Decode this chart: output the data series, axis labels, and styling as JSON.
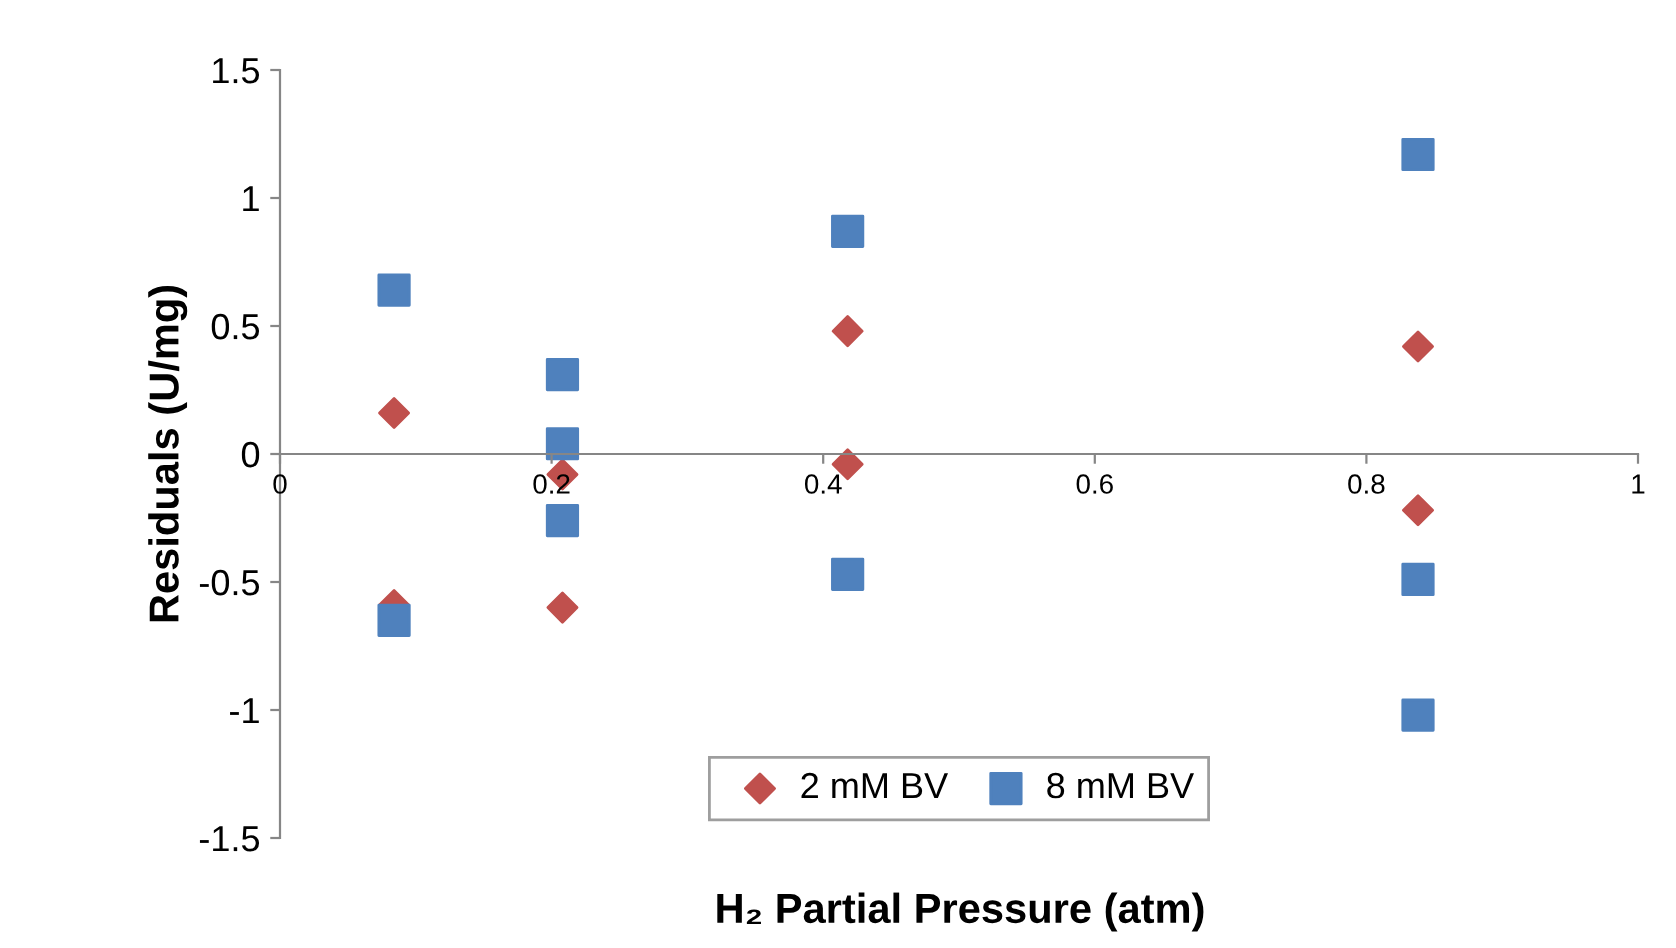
{
  "chart_data": {
    "type": "scatter",
    "xlabel": "H₂ Partial Pressure (atm)",
    "ylabel": "Residuals (U/mg)",
    "xlim": [
      0,
      1
    ],
    "xticks": [
      0,
      0.2,
      0.4,
      0.6,
      0.8,
      1
    ],
    "ylim": [
      -1.5,
      1.5
    ],
    "yticks": [
      -1.5,
      -1,
      -0.5,
      0,
      0.5,
      1,
      1.5
    ],
    "grid": false,
    "legend": "bottom",
    "series": [
      {
        "name": "2 mM BV",
        "color": "#c0504d",
        "marker": "diamond",
        "x": [
          0.084,
          0.084,
          0.208,
          0.208,
          0.418,
          0.418,
          0.838,
          0.838
        ],
        "values": [
          0.16,
          -0.59,
          -0.08,
          -0.6,
          0.48,
          -0.04,
          0.42,
          -0.22
        ]
      },
      {
        "name": "8 mM BV",
        "color": "#4f81bd",
        "marker": "square",
        "x": [
          0.084,
          0.084,
          0.208,
          0.208,
          0.208,
          0.418,
          0.418,
          0.838,
          0.838,
          0.838
        ],
        "values": [
          0.64,
          -0.65,
          0.31,
          0.04,
          -0.26,
          0.87,
          -0.47,
          1.17,
          -0.49,
          -1.02
        ]
      }
    ]
  }
}
